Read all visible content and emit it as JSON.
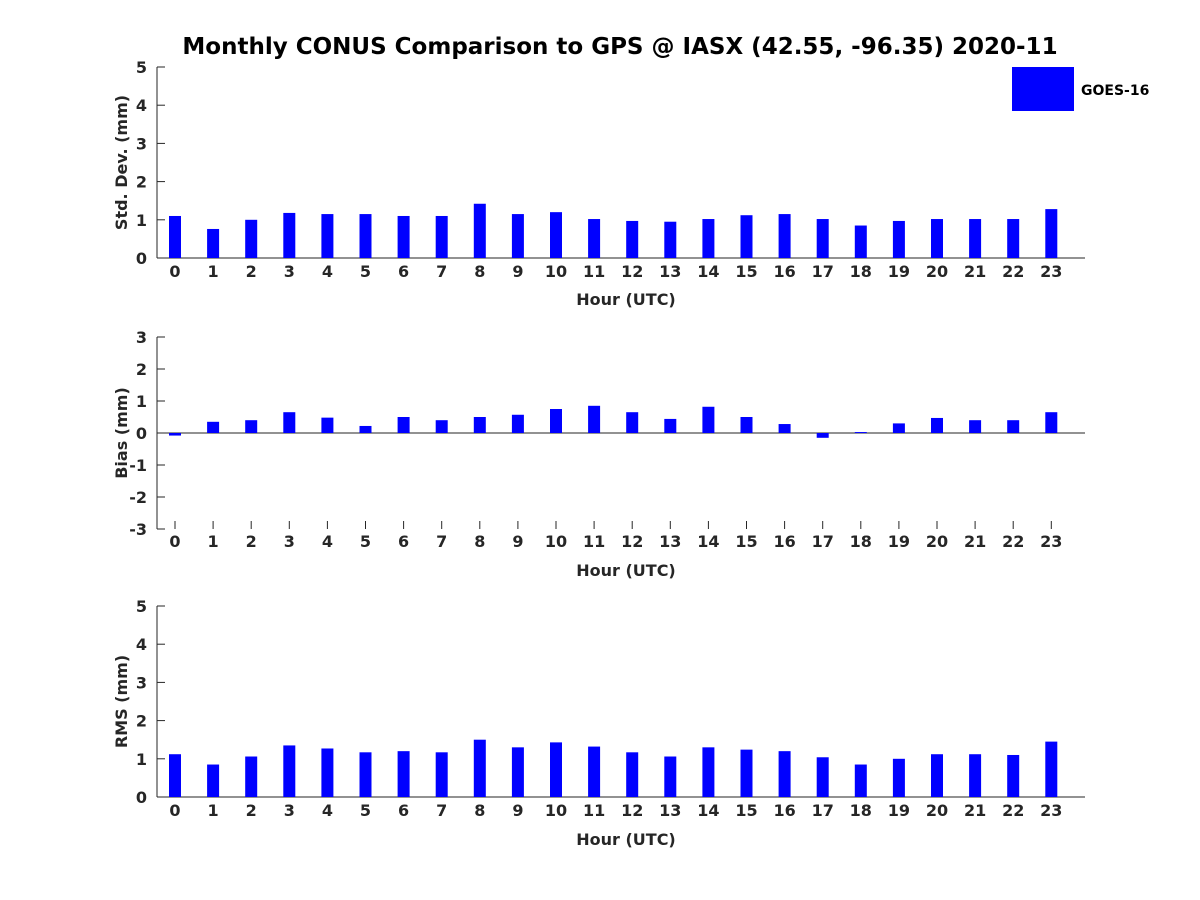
{
  "figure": {
    "title": "Monthly CONUS Comparison to GPS @ IASX (42.55, -96.35) 2020-11",
    "legend": {
      "label": "GOES-16",
      "color": "#0000ff",
      "placement": "top-right"
    }
  },
  "chart_data": [
    {
      "type": "bar",
      "ylabel": "Std. Dev. (mm)",
      "xlabel": "Hour (UTC)",
      "ylim": [
        0,
        5
      ],
      "yticks": [
        0,
        1,
        2,
        3,
        4,
        5
      ],
      "categories": [
        0,
        1,
        2,
        3,
        4,
        5,
        6,
        7,
        8,
        9,
        10,
        11,
        12,
        13,
        14,
        15,
        16,
        17,
        18,
        19,
        20,
        21,
        22,
        23
      ],
      "series": [
        {
          "name": "GOES-16",
          "color": "#0000ff",
          "values": [
            1.1,
            0.76,
            1.0,
            1.18,
            1.15,
            1.15,
            1.1,
            1.1,
            1.42,
            1.15,
            1.2,
            1.02,
            0.97,
            0.95,
            1.02,
            1.12,
            1.15,
            1.02,
            0.85,
            0.97,
            1.02,
            1.02,
            1.02,
            1.28
          ]
        }
      ],
      "grid": false
    },
    {
      "type": "bar",
      "ylabel": "Bias (mm)",
      "xlabel": "Hour (UTC)",
      "ylim": [
        -3,
        3
      ],
      "yticks": [
        -3,
        -2,
        -1,
        0,
        1,
        2,
        3
      ],
      "categories": [
        0,
        1,
        2,
        3,
        4,
        5,
        6,
        7,
        8,
        9,
        10,
        11,
        12,
        13,
        14,
        15,
        16,
        17,
        18,
        19,
        20,
        21,
        22,
        23
      ],
      "series": [
        {
          "name": "GOES-16",
          "color": "#0000ff",
          "values": [
            -0.08,
            0.35,
            0.4,
            0.65,
            0.48,
            0.22,
            0.5,
            0.4,
            0.5,
            0.57,
            0.75,
            0.85,
            0.65,
            0.44,
            0.82,
            0.5,
            0.28,
            -0.15,
            0.03,
            0.3,
            0.47,
            0.4,
            0.4,
            0.65
          ]
        }
      ],
      "grid": false
    },
    {
      "type": "bar",
      "ylabel": "RMS (mm)",
      "xlabel": "Hour (UTC)",
      "ylim": [
        0,
        5
      ],
      "yticks": [
        0,
        1,
        2,
        3,
        4,
        5
      ],
      "categories": [
        0,
        1,
        2,
        3,
        4,
        5,
        6,
        7,
        8,
        9,
        10,
        11,
        12,
        13,
        14,
        15,
        16,
        17,
        18,
        19,
        20,
        21,
        22,
        23
      ],
      "series": [
        {
          "name": "GOES-16",
          "color": "#0000ff",
          "values": [
            1.12,
            0.85,
            1.06,
            1.35,
            1.27,
            1.17,
            1.2,
            1.17,
            1.5,
            1.3,
            1.43,
            1.32,
            1.17,
            1.06,
            1.3,
            1.24,
            1.2,
            1.04,
            0.85,
            1.0,
            1.12,
            1.12,
            1.1,
            1.45
          ]
        }
      ],
      "grid": false
    }
  ]
}
